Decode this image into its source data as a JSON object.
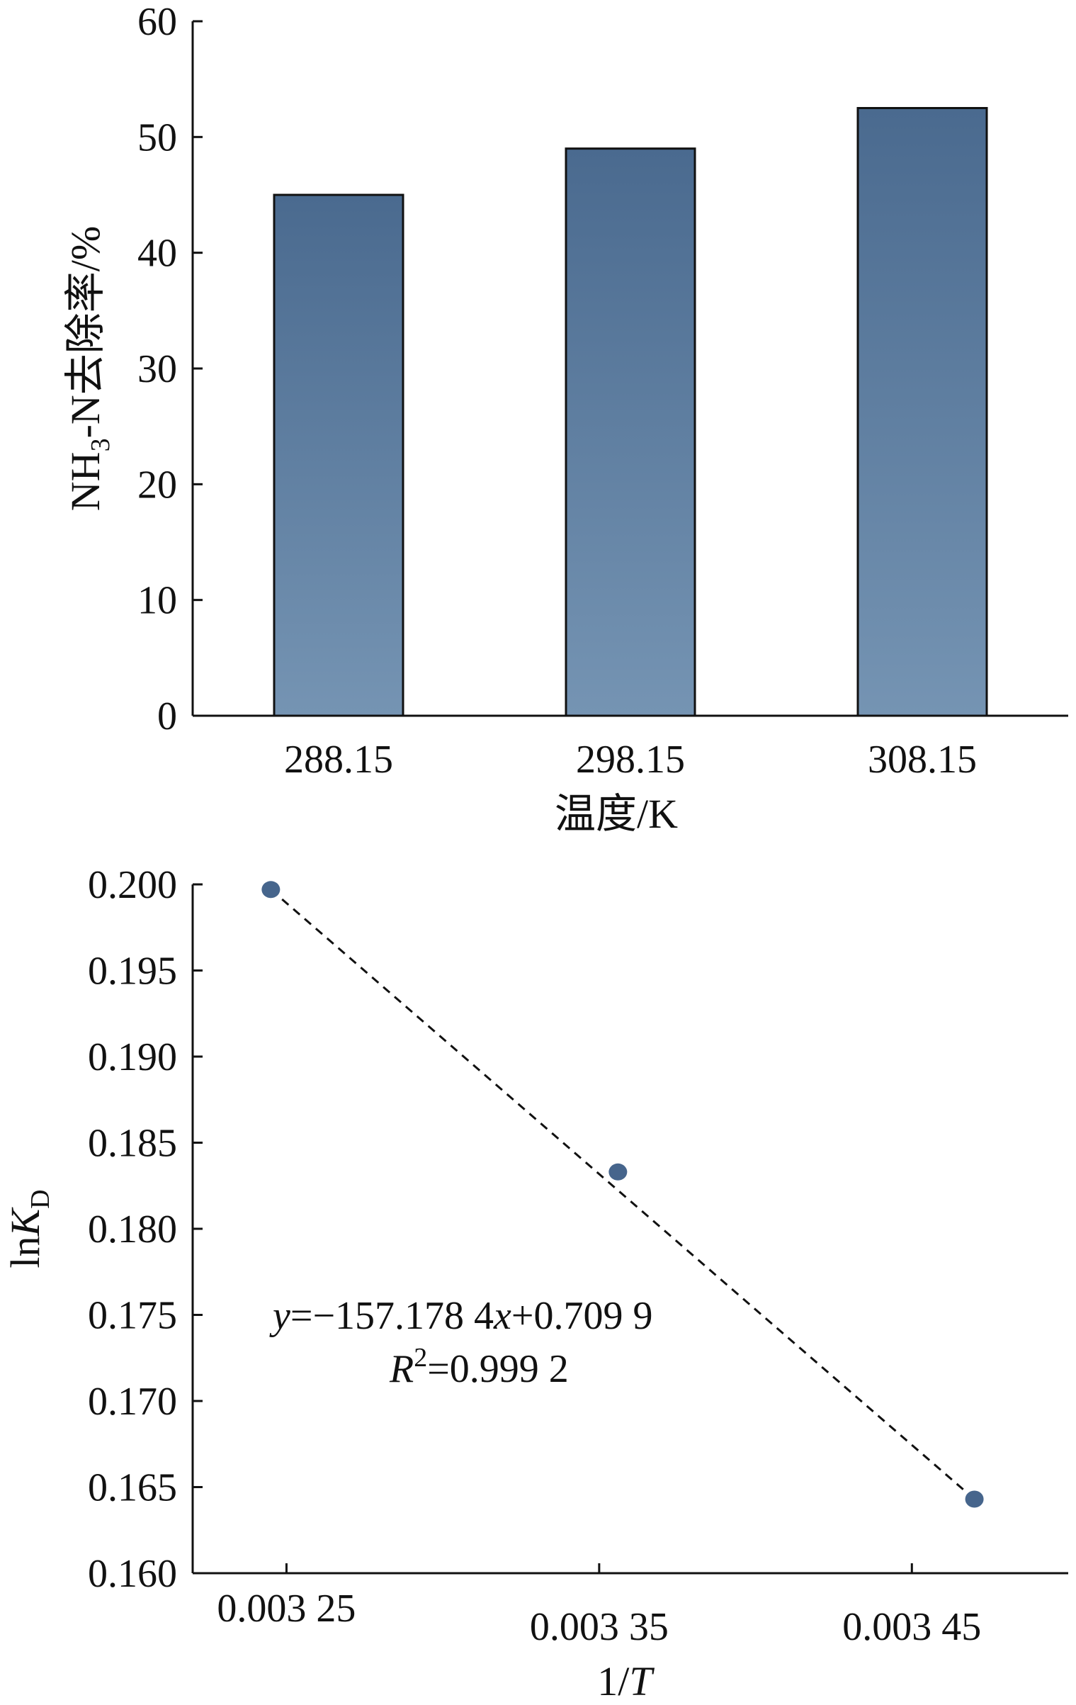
{
  "chart_data": [
    {
      "type": "bar",
      "categories": [
        "288.15",
        "298.15",
        "308.15"
      ],
      "values": [
        45,
        49,
        52.5
      ],
      "xlabel": "温度/K",
      "ylabel": {
        "main": "NH",
        "sub": "3",
        "rest": "-N去除率/%"
      },
      "ylim": [
        0,
        60
      ],
      "yticks": [
        "0",
        "10",
        "20",
        "30",
        "40",
        "50",
        "60"
      ],
      "grid": false,
      "colors": {
        "bar_top": "#4a6a8f",
        "bar_bottom": "#7594b3",
        "edge": "#111111"
      }
    },
    {
      "type": "scatter",
      "points": [
        {
          "x": 0.003245,
          "y": 0.1997
        },
        {
          "x": 0.003356,
          "y": 0.1833
        },
        {
          "x": 0.00347,
          "y": 0.1643
        }
      ],
      "fit_line": {
        "slope": -157.1784,
        "intercept": 0.7099,
        "style": "dashed"
      },
      "annotation": {
        "equation": {
          "y": "y",
          "eq1": "=−157.178 4",
          "x": "x",
          "eq2": "+0.709 9"
        },
        "r2": {
          "R": "R",
          "sup": "2",
          "rest": "=0.999 2"
        }
      },
      "xlabel": {
        "prefix": "1/",
        "italic": "T"
      },
      "ylabel": {
        "prefix": "ln",
        "italic": "K",
        "sub": "D"
      },
      "xlim": [
        0.00322,
        0.0035
      ],
      "ylim": [
        0.16,
        0.2
      ],
      "xticks": [
        {
          "value": 0.00325,
          "label": "0.003 25"
        },
        {
          "value": 0.00335,
          "label": "0.003 35"
        },
        {
          "value": 0.00345,
          "label": "0.003 45"
        }
      ],
      "yticks": [
        "0.160",
        "0.165",
        "0.170",
        "0.175",
        "0.180",
        "0.185",
        "0.190",
        "0.195",
        "0.200"
      ],
      "grid": false,
      "colors": {
        "point": "#46658c",
        "line": "#111111"
      }
    }
  ]
}
